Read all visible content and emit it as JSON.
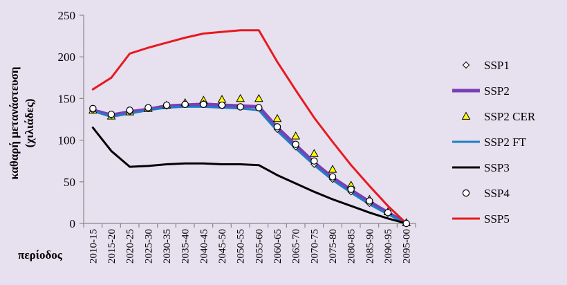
{
  "chart_data": {
    "type": "line",
    "title": "",
    "xlabel": "περίοδος",
    "ylabel_line1": "καθαρή μετανάστευση",
    "ylabel_line2": "(χιλιάδες)",
    "ylim": [
      0,
      250
    ],
    "yticks": [
      0,
      50,
      100,
      150,
      200,
      250
    ],
    "grid": false,
    "legend_position": "right",
    "categories": [
      "2010-15",
      "2015-20",
      "2020-25",
      "2025-30",
      "2030-35",
      "2035-40",
      "2040-45",
      "2045-50",
      "2050-55",
      "2055-60",
      "2060-65",
      "2065-70",
      "2070-75",
      "2075-80",
      "2080-85",
      "2085-90",
      "2090-95",
      "2095-00"
    ],
    "series": [
      {
        "name": "SSP1",
        "style": "marker",
        "marker": "diamond",
        "color": "#000000",
        "values": [
          136,
          130,
          134,
          138,
          141,
          143,
          144,
          142,
          140,
          139,
          113,
          92,
          71,
          53,
          38,
          24,
          12,
          0
        ]
      },
      {
        "name": "SSP2",
        "style": "line",
        "color": "#7a3fb5",
        "values": [
          136,
          130,
          134,
          137,
          141,
          142,
          143,
          142,
          141,
          140,
          115,
          94,
          73,
          55,
          40,
          26,
          13,
          0
        ]
      },
      {
        "name": "SSP2 CER",
        "style": "marker",
        "marker": "triangle",
        "color": "#ffff00",
        "values": [
          136,
          129,
          134,
          138,
          142,
          145,
          148,
          149,
          150,
          150,
          126,
          105,
          84,
          65,
          46,
          29,
          14,
          1
        ]
      },
      {
        "name": "SSP2 FT",
        "style": "line",
        "color": "#1f7ec4",
        "values": [
          135,
          128,
          132,
          136,
          139,
          140,
          140,
          139,
          138,
          136,
          111,
          90,
          70,
          52,
          37,
          23,
          11,
          0
        ]
      },
      {
        "name": "SSP3",
        "style": "line",
        "color": "#000000",
        "values": [
          115,
          87,
          68,
          69,
          71,
          72,
          72,
          71,
          71,
          70,
          58,
          48,
          38,
          29,
          21,
          13,
          6,
          0
        ]
      },
      {
        "name": "SSP4",
        "style": "marker",
        "marker": "circle",
        "color": "#ffffff",
        "values": [
          138,
          131,
          136,
          139,
          142,
          143,
          143,
          142,
          140,
          139,
          116,
          95,
          75,
          56,
          41,
          27,
          13,
          0
        ]
      },
      {
        "name": "SSP5",
        "style": "line",
        "color": "#e8191e",
        "values": [
          161,
          175,
          204,
          211,
          217,
          223,
          228,
          230,
          232,
          232,
          194,
          160,
          127,
          98,
          70,
          45,
          21,
          0
        ]
      }
    ]
  }
}
